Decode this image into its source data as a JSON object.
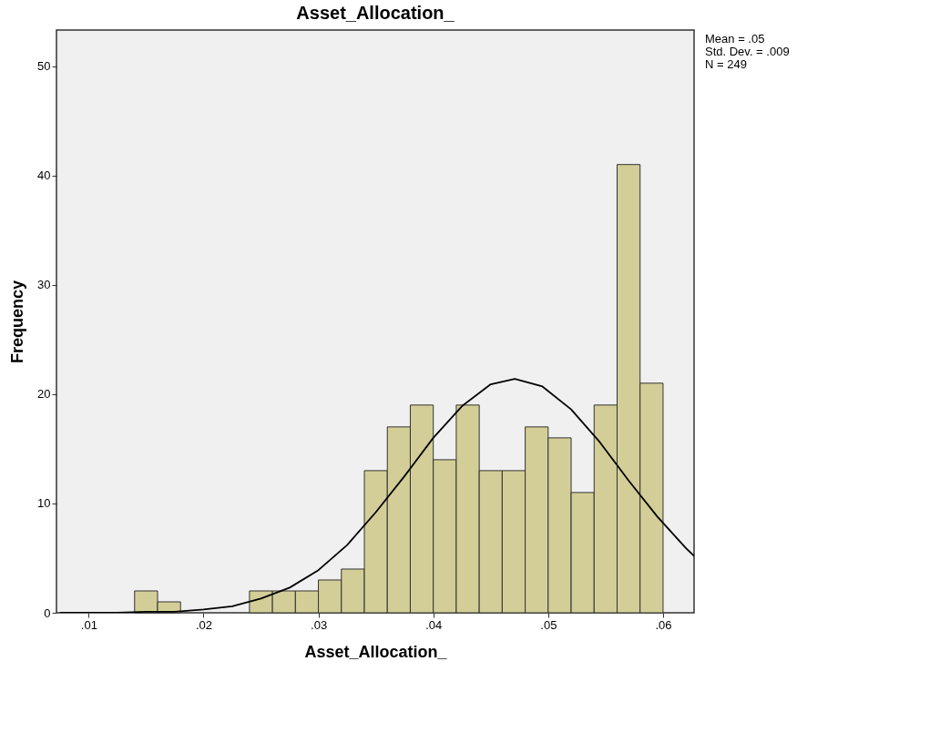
{
  "chart_data": {
    "type": "histogram",
    "title": "Asset_Allocation_",
    "xlabel": "Asset_Allocation_",
    "ylabel": "Frequency",
    "series": [
      {
        "color": "#d3ce97",
        "bins": [
          0.014,
          0.016,
          0.018,
          0.02,
          0.022,
          0.024,
          0.026,
          0.028,
          0.03,
          0.032,
          0.034,
          0.036,
          0.038,
          0.04,
          0.042,
          0.044,
          0.046,
          0.048,
          0.05,
          0.052,
          0.054,
          0.056,
          0.058,
          0.06
        ],
        "values": [
          2,
          1,
          0,
          0,
          0,
          2,
          2,
          2,
          3,
          4,
          13,
          17,
          19,
          14,
          19,
          13,
          13,
          17,
          16,
          11,
          19,
          41,
          21
        ]
      },
      {
        "type": "line",
        "color": "#000000",
        "x": [
          0.0075,
          0.01,
          0.0125,
          0.015,
          0.0175,
          0.02,
          0.0225,
          0.025,
          0.0275,
          0.03,
          0.0325,
          0.035,
          0.0375,
          0.04,
          0.0425,
          0.045,
          0.0471,
          0.0495,
          0.052,
          0.0545,
          0.057,
          0.0595,
          0.062,
          0.0627
        ],
        "values": [
          0.0,
          0.0,
          0.0,
          0.1,
          0.1,
          0.3,
          0.6,
          1.3,
          2.3,
          3.9,
          6.2,
          9.2,
          12.5,
          16.0,
          18.9,
          20.9,
          21.4,
          20.7,
          18.6,
          15.6,
          12.1,
          8.8,
          5.9,
          5.2
        ]
      }
    ],
    "xlim": [
      0.0072,
      0.0627
    ],
    "ylim": [
      0,
      53.3
    ],
    "xticks": [
      {
        "value": 0.01,
        "label": ".01"
      },
      {
        "value": 0.02,
        "label": ".02"
      },
      {
        "value": 0.03,
        "label": ".03"
      },
      {
        "value": 0.04,
        "label": ".04"
      },
      {
        "value": 0.05,
        "label": ".05"
      },
      {
        "value": 0.06,
        "label": ".06"
      }
    ],
    "yticks": [
      0,
      10,
      20,
      30,
      40,
      50
    ],
    "grid": false,
    "annotations": [
      "Mean = .05",
      "Std. Dev. = .009",
      "N = 249"
    ]
  }
}
